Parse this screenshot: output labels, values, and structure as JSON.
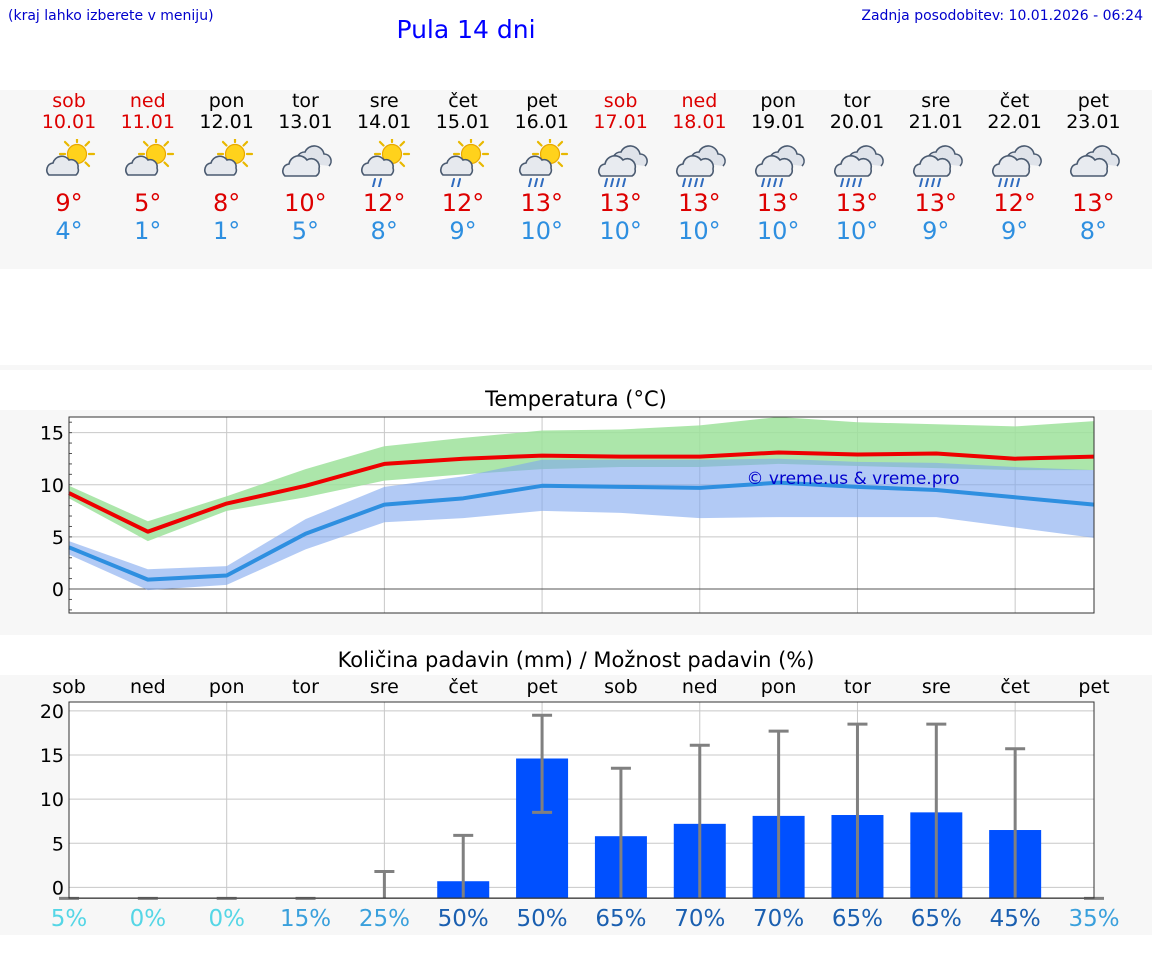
{
  "header": {
    "menu_hint": "(kraj lahko izberete v meniju)",
    "title": "Pula 14 dni",
    "last_update": "Zadnja posodobitev: 10.01.2026 - 06:24"
  },
  "colors": {
    "weekend": "#dd0000",
    "weekday": "#000000",
    "tmax": "#dd0000",
    "tmin": "#2e8fe0",
    "bar": "#0050ff",
    "errorbar": "#808080"
  },
  "days": [
    {
      "name": "sob",
      "date": "10.01",
      "weekend": true,
      "icon": "sun-cloud-icon",
      "tmax": "9°",
      "tmin": "4°"
    },
    {
      "name": "ned",
      "date": "11.01",
      "weekend": true,
      "icon": "sun-cloud-icon",
      "tmax": "5°",
      "tmin": "1°"
    },
    {
      "name": "pon",
      "date": "12.01",
      "weekend": false,
      "icon": "sun-cloud-icon",
      "tmax": "8°",
      "tmin": "1°"
    },
    {
      "name": "tor",
      "date": "13.01",
      "weekend": false,
      "icon": "cloudy-icon",
      "tmax": "10°",
      "tmin": "5°"
    },
    {
      "name": "sre",
      "date": "14.01",
      "weekend": false,
      "icon": "sun-cloud-light-rain-icon",
      "tmax": "12°",
      "tmin": "8°"
    },
    {
      "name": "čet",
      "date": "15.01",
      "weekend": false,
      "icon": "sun-cloud-light-rain-icon",
      "tmax": "12°",
      "tmin": "9°"
    },
    {
      "name": "pet",
      "date": "16.01",
      "weekend": false,
      "icon": "sun-cloud-rain-icon",
      "tmax": "13°",
      "tmin": "10°"
    },
    {
      "name": "sob",
      "date": "17.01",
      "weekend": true,
      "icon": "cloud-rain-icon",
      "tmax": "13°",
      "tmin": "10°"
    },
    {
      "name": "ned",
      "date": "18.01",
      "weekend": true,
      "icon": "cloud-rain-icon",
      "tmax": "13°",
      "tmin": "10°"
    },
    {
      "name": "pon",
      "date": "19.01",
      "weekend": false,
      "icon": "cloud-rain-icon",
      "tmax": "13°",
      "tmin": "10°"
    },
    {
      "name": "tor",
      "date": "20.01",
      "weekend": false,
      "icon": "cloud-rain-icon",
      "tmax": "13°",
      "tmin": "10°"
    },
    {
      "name": "sre",
      "date": "21.01",
      "weekend": false,
      "icon": "cloud-rain-icon",
      "tmax": "13°",
      "tmin": "9°"
    },
    {
      "name": "čet",
      "date": "22.01",
      "weekend": false,
      "icon": "cloud-rain-icon",
      "tmax": "12°",
      "tmin": "9°"
    },
    {
      "name": "pet",
      "date": "23.01",
      "weekend": false,
      "icon": "cloudy-icon",
      "tmax": "13°",
      "tmin": "8°"
    }
  ],
  "chart_data": [
    {
      "type": "line",
      "title": "Temperatura (°C)",
      "watermark": "© vreme.us & vreme.pro",
      "categories": [
        "10.01",
        "11.01",
        "12.01",
        "13.01",
        "14.01",
        "15.01",
        "16.01",
        "17.01",
        "18.01",
        "19.01",
        "20.01",
        "21.01",
        "22.01",
        "23.01"
      ],
      "ylim": [
        -2.3,
        16.5
      ],
      "yticks": [
        0,
        5,
        10,
        15
      ],
      "series": [
        {
          "name": "max",
          "values": [
            9.2,
            5.5,
            8.2,
            9.9,
            12.0,
            12.5,
            12.8,
            12.7,
            12.7,
            13.1,
            12.9,
            13.0,
            12.5,
            12.7
          ],
          "band_low": [
            8.7,
            4.6,
            7.5,
            8.8,
            10.4,
            11.0,
            11.5,
            11.7,
            11.7,
            12.0,
            11.8,
            11.6,
            11.4,
            11.4
          ],
          "band_high": [
            9.9,
            6.5,
            8.9,
            11.5,
            13.7,
            14.5,
            15.2,
            15.3,
            15.7,
            16.5,
            16.0,
            15.8,
            15.6,
            16.1
          ]
        },
        {
          "name": "min",
          "values": [
            4.0,
            0.9,
            1.3,
            5.3,
            8.1,
            8.7,
            9.9,
            9.8,
            9.7,
            10.2,
            9.8,
            9.5,
            8.8,
            8.1
          ],
          "band_low": [
            3.3,
            -0.1,
            0.4,
            3.8,
            6.4,
            6.8,
            7.5,
            7.3,
            6.8,
            6.9,
            6.9,
            6.9,
            5.9,
            4.9
          ],
          "band_high": [
            4.6,
            1.9,
            2.2,
            6.7,
            9.8,
            10.8,
            12.4,
            12.4,
            12.4,
            12.5,
            12.2,
            12.1,
            11.7,
            11.4
          ]
        }
      ]
    },
    {
      "type": "bar",
      "title": "Količina padavin (mm) / Možnost padavin (%)",
      "categories": [
        "sob",
        "ned",
        "pon",
        "tor",
        "sre",
        "čet",
        "pet",
        "sob",
        "ned",
        "pon",
        "tor",
        "sre",
        "čet",
        "pet"
      ],
      "values": [
        0,
        0,
        0,
        0,
        0,
        0.7,
        14.6,
        5.8,
        7.2,
        8.1,
        8.2,
        8.5,
        6.5,
        0
      ],
      "error_high": [
        0,
        0,
        0,
        0,
        1.8,
        5.9,
        19.5,
        13.5,
        16.1,
        17.7,
        18.5,
        18.5,
        15.7,
        0
      ],
      "error_low": [
        0,
        0,
        0,
        0,
        0,
        0,
        8.5,
        0,
        0,
        0,
        0,
        0,
        0,
        0
      ],
      "probabilities": [
        "5%",
        "0%",
        "0%",
        "15%",
        "25%",
        "50%",
        "50%",
        "65%",
        "70%",
        "70%",
        "65%",
        "65%",
        "45%",
        "35%"
      ],
      "ylim": [
        -1.2,
        21
      ],
      "yticks": [
        0,
        5,
        10,
        15,
        20
      ]
    }
  ]
}
